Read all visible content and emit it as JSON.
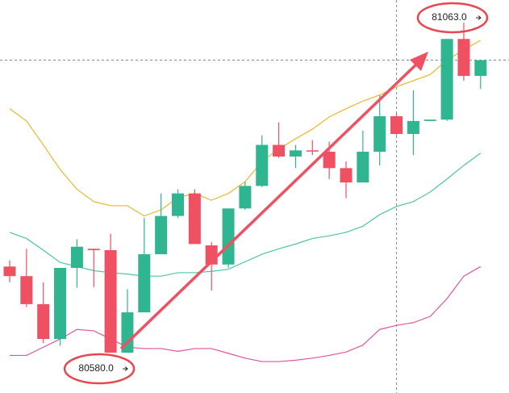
{
  "chart_data": {
    "type": "candlestick",
    "open": [
      80706,
      80692,
      80651,
      80600,
      80704,
      80732,
      80730,
      80580,
      80639,
      80724,
      80780,
      80813,
      80737,
      80709,
      80791,
      80824,
      80884,
      80867,
      80876,
      80874,
      80850,
      80829,
      80874,
      80926,
      80900,
      80919,
      80921,
      81039,
      80985
    ],
    "high": [
      80715,
      80732,
      80683,
      80704,
      80746,
      80732,
      80754,
      80673,
      80777,
      80813,
      80819,
      80819,
      80742,
      80791,
      80830,
      80898,
      80917,
      80884,
      80891,
      80889,
      80860,
      80905,
      80957,
      80931,
      80964,
      80921,
      81039,
      81063,
      81008
    ],
    "low": [
      80683,
      80647,
      80594,
      80590,
      80675,
      80676,
      80580,
      80580,
      80639,
      80724,
      80777,
      80739,
      80671,
      80704,
      80789,
      80822,
      80865,
      80850,
      80869,
      80834,
      80806,
      80829,
      80854,
      80898,
      80869,
      80919,
      80919,
      80978,
      80966
    ],
    "close": [
      80692,
      80651,
      80600,
      80704,
      80735,
      80730,
      80580,
      80639,
      80724,
      80780,
      80813,
      80739,
      80709,
      80791,
      80824,
      80884,
      80867,
      80876,
      80875,
      80850,
      80829,
      80874,
      80926,
      80900,
      80919,
      80921,
      81039,
      80985,
      81008
    ],
    "up_color": "#2fb58f",
    "down_color": "#ef5062",
    "lines": [
      {
        "color": "#e9b82a",
        "values": [
          80937,
          80919,
          80884,
          80848,
          80819,
          80801,
          80795,
          80795,
          80780,
          80789,
          80807,
          80813,
          80803,
          80813,
          80830,
          80860,
          80878,
          80893,
          80907,
          80925,
          80937,
          80948,
          80957,
          80969,
          80978,
          80987,
          81008,
          81023,
          81037
        ]
      },
      {
        "color": "#4cc5a3",
        "values": [
          80756,
          80747,
          80730,
          80712,
          80706,
          80700,
          80697,
          80695,
          80692,
          80692,
          80697,
          80697,
          80699,
          80702,
          80713,
          80724,
          80732,
          80739,
          80747,
          80751,
          80756,
          80765,
          80782,
          80794,
          80801,
          80815,
          80834,
          80854,
          80872
        ]
      },
      {
        "color": "#e0559f",
        "values": [
          80576,
          80576,
          80588,
          80600,
          80614,
          80612,
          80600,
          80588,
          80586,
          80586,
          80582,
          80586,
          80586,
          80579,
          80572,
          80567,
          80567,
          80569,
          80572,
          80576,
          80581,
          80591,
          80614,
          80620,
          80624,
          80633,
          80659,
          80692,
          80706
        ]
      }
    ],
    "ylim": [
      80521,
      81096
    ],
    "crosshair_price": 81008,
    "crosshair_candle": 23,
    "annotations": [
      {
        "label": "80580.0",
        "value": 80580
      },
      {
        "label": "81063.0",
        "value": 81063
      }
    ]
  }
}
